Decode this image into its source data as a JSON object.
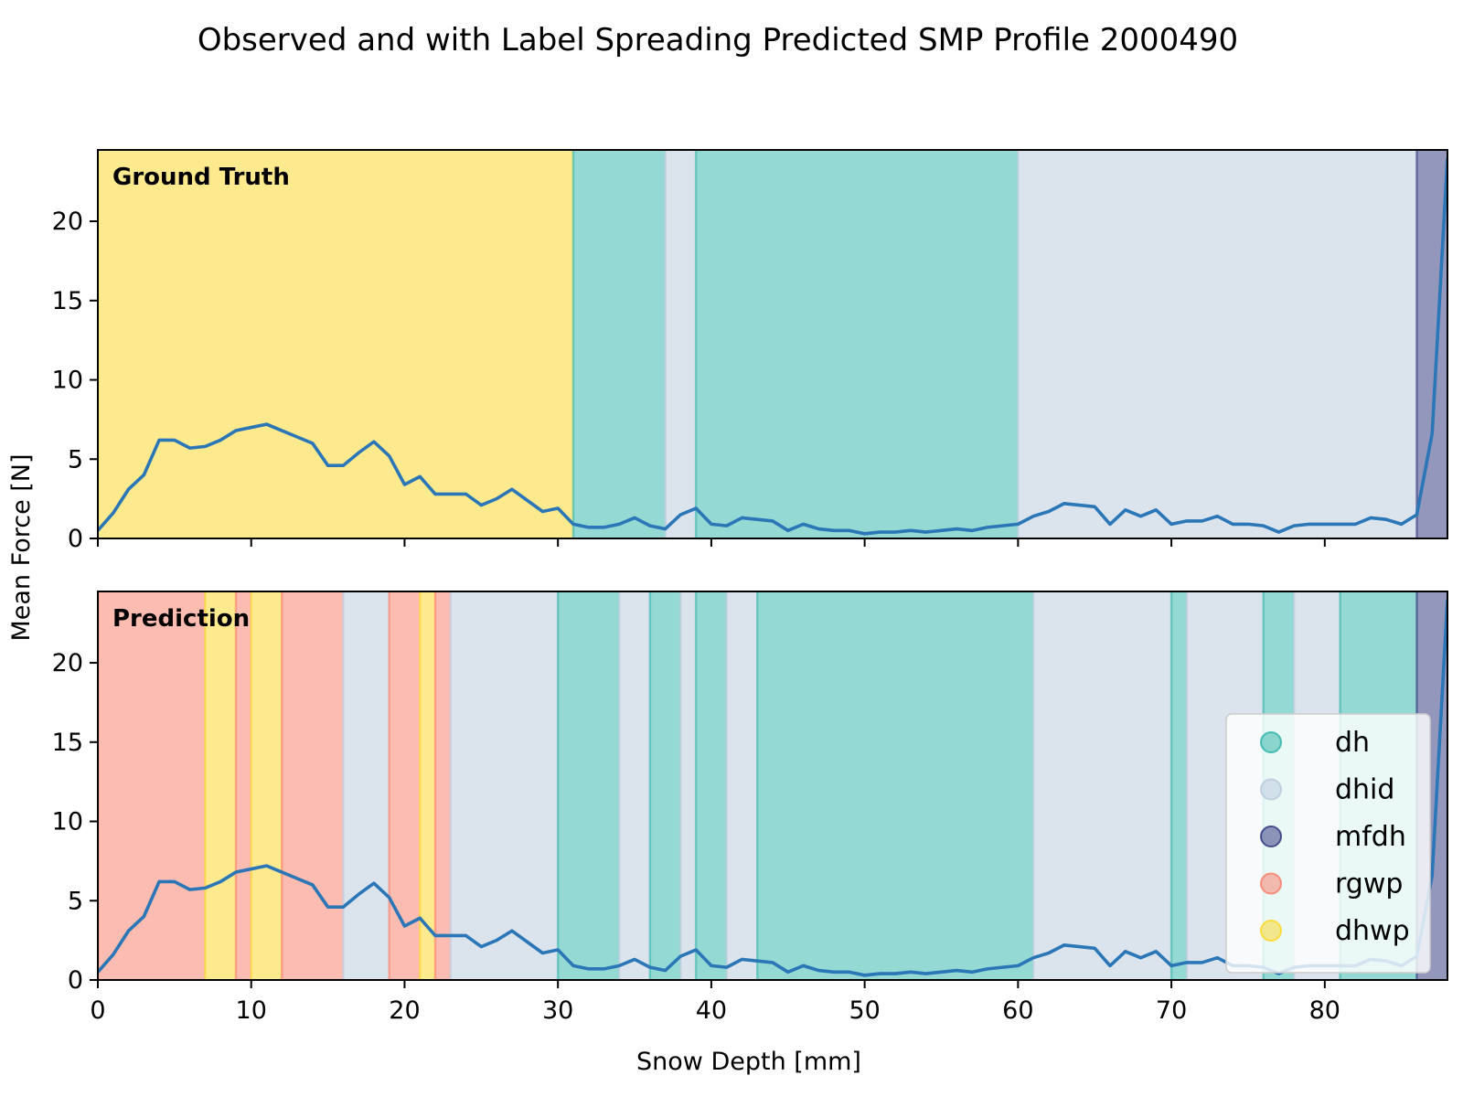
{
  "chart_data": {
    "type": "line",
    "title": "Observed and with Label Spreading Predicted SMP Profile 2000490",
    "xlabel": "Snow Depth [mm]",
    "ylabel": "Mean Force [N]",
    "xlim": [
      0,
      88
    ],
    "ylim": [
      0,
      24.5
    ],
    "xticks": [
      0,
      10,
      20,
      30,
      40,
      50,
      60,
      70,
      80
    ],
    "yticks": [
      0,
      5,
      10,
      15,
      20
    ],
    "grid": false,
    "legend_position": "lower-right",
    "classes": [
      {
        "name": "dh",
        "color": "#2ab3a8"
      },
      {
        "name": "dhid",
        "color": "#b8c8dc"
      },
      {
        "name": "mfdh",
        "color": "#2a2f7a"
      },
      {
        "name": "rgwp",
        "color": "#fa7a66"
      },
      {
        "name": "dhwp",
        "color": "#fcd620"
      }
    ],
    "line_color": "#2a76b6",
    "series": [
      {
        "x": [
          0,
          1,
          2,
          3,
          4,
          5,
          6,
          7,
          8,
          9,
          10,
          11,
          12,
          13,
          14,
          15,
          16,
          17,
          18,
          19,
          20,
          21,
          22,
          23,
          24,
          25,
          26,
          27,
          28,
          29,
          30,
          31,
          32,
          33,
          34,
          35,
          36,
          37,
          38,
          39,
          40,
          41,
          42,
          43,
          44,
          45,
          46,
          47,
          48,
          49,
          50,
          51,
          52,
          53,
          54,
          55,
          56,
          57,
          58,
          59,
          60,
          61,
          62,
          63,
          64,
          65,
          66,
          67,
          68,
          69,
          70,
          71,
          72,
          73,
          74,
          75,
          76,
          77,
          78,
          79,
          80,
          81,
          82,
          83,
          84,
          85,
          86,
          87,
          88
        ],
        "y": [
          0.5,
          1.6,
          3.1,
          4.0,
          6.2,
          6.2,
          5.7,
          5.8,
          6.2,
          6.8,
          7.0,
          7.2,
          6.8,
          6.4,
          6.0,
          4.6,
          4.6,
          5.4,
          6.1,
          5.2,
          3.4,
          3.9,
          2.8,
          2.8,
          2.8,
          2.1,
          2.5,
          3.1,
          2.4,
          1.7,
          1.9,
          0.9,
          0.7,
          0.7,
          0.9,
          1.3,
          0.8,
          0.6,
          1.5,
          1.9,
          0.9,
          0.8,
          1.3,
          1.2,
          1.1,
          0.5,
          0.9,
          0.6,
          0.5,
          0.5,
          0.3,
          0.4,
          0.4,
          0.5,
          0.4,
          0.5,
          0.6,
          0.5,
          0.7,
          0.8,
          0.9,
          1.4,
          1.7,
          2.2,
          2.1,
          2.0,
          0.9,
          1.8,
          1.4,
          1.8,
          0.9,
          1.1,
          1.1,
          1.4,
          0.9,
          0.9,
          0.8,
          0.4,
          0.8,
          0.9,
          0.9,
          0.9,
          0.9,
          1.3,
          1.2,
          0.9,
          1.5,
          6.6,
          24.0
        ]
      }
    ],
    "panels": [
      {
        "label": "Ground Truth",
        "segments": [
          {
            "start": 0,
            "end": 31,
            "class": "dhwp"
          },
          {
            "start": 31,
            "end": 37,
            "class": "dh"
          },
          {
            "start": 37,
            "end": 39,
            "class": "dhid"
          },
          {
            "start": 39,
            "end": 60,
            "class": "dh"
          },
          {
            "start": 60,
            "end": 86,
            "class": "dhid"
          },
          {
            "start": 86,
            "end": 88,
            "class": "mfdh"
          }
        ]
      },
      {
        "label": "Prediction",
        "segments": [
          {
            "start": 0,
            "end": 7,
            "class": "rgwp"
          },
          {
            "start": 7,
            "end": 9,
            "class": "dhwp"
          },
          {
            "start": 9,
            "end": 10,
            "class": "rgwp"
          },
          {
            "start": 10,
            "end": 12,
            "class": "dhwp"
          },
          {
            "start": 12,
            "end": 16,
            "class": "rgwp"
          },
          {
            "start": 16,
            "end": 19,
            "class": "dhid"
          },
          {
            "start": 19,
            "end": 21,
            "class": "rgwp"
          },
          {
            "start": 21,
            "end": 22,
            "class": "dhwp"
          },
          {
            "start": 22,
            "end": 23,
            "class": "rgwp"
          },
          {
            "start": 23,
            "end": 30,
            "class": "dhid"
          },
          {
            "start": 30,
            "end": 34,
            "class": "dh"
          },
          {
            "start": 34,
            "end": 36,
            "class": "dhid"
          },
          {
            "start": 36,
            "end": 38,
            "class": "dh"
          },
          {
            "start": 38,
            "end": 39,
            "class": "dhid"
          },
          {
            "start": 39,
            "end": 41,
            "class": "dh"
          },
          {
            "start": 41,
            "end": 43,
            "class": "dhid"
          },
          {
            "start": 43,
            "end": 61,
            "class": "dh"
          },
          {
            "start": 61,
            "end": 70,
            "class": "dhid"
          },
          {
            "start": 70,
            "end": 71,
            "class": "dh"
          },
          {
            "start": 71,
            "end": 76,
            "class": "dhid"
          },
          {
            "start": 76,
            "end": 78,
            "class": "dh"
          },
          {
            "start": 78,
            "end": 81,
            "class": "dhid"
          },
          {
            "start": 81,
            "end": 86,
            "class": "dh"
          },
          {
            "start": 86,
            "end": 88,
            "class": "mfdh"
          }
        ]
      }
    ]
  }
}
